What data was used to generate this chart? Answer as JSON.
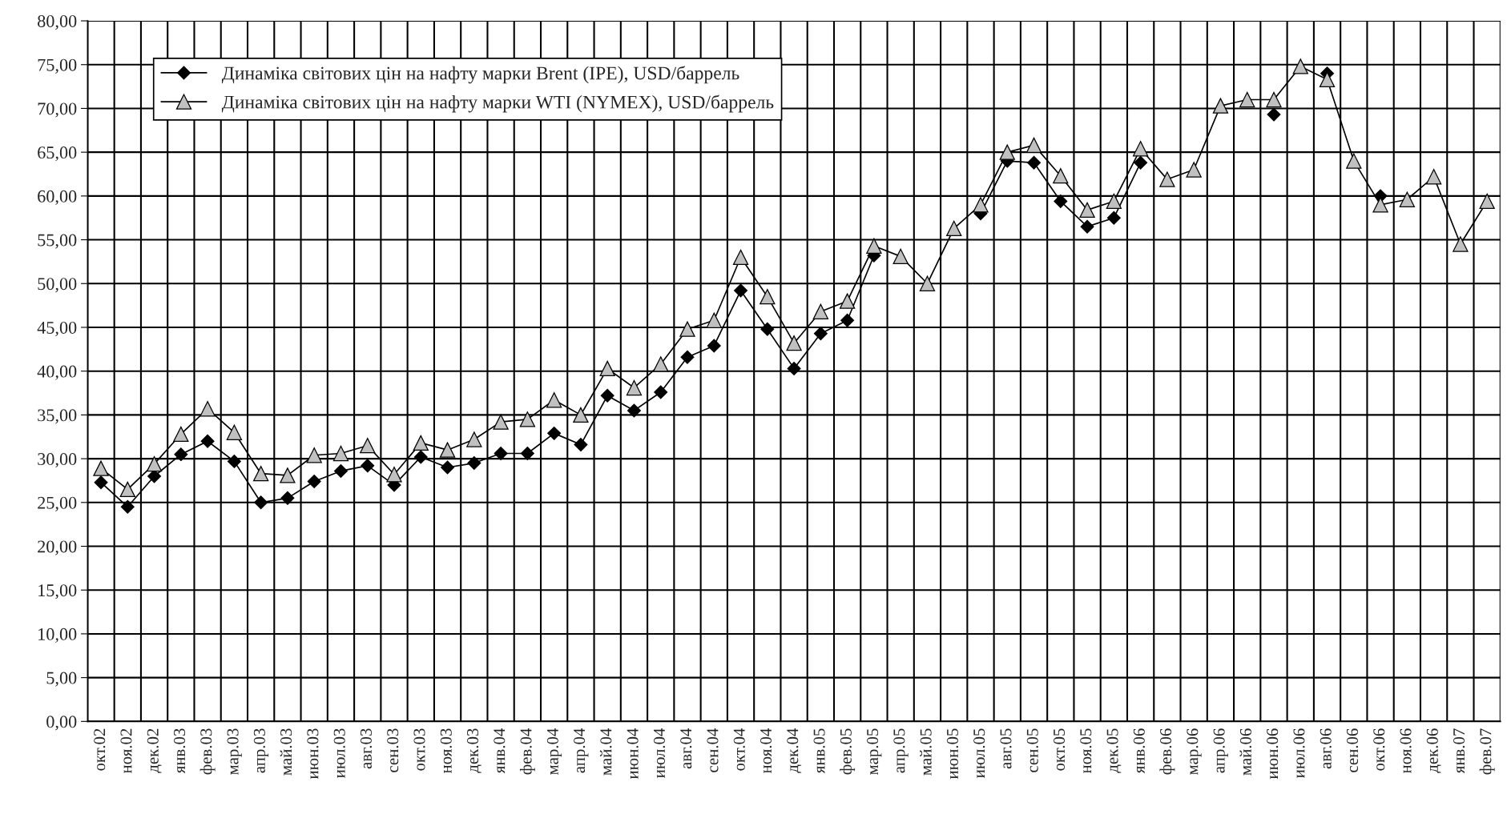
{
  "chart_data": {
    "type": "line",
    "categories": [
      "окт.02",
      "ноя.02",
      "дек.02",
      "янв.03",
      "фев.03",
      "мар.03",
      "апр.03",
      "май.03",
      "июн.03",
      "июл.03",
      "авг.03",
      "сен.03",
      "окт.03",
      "ноя.03",
      "дек.03",
      "янв.04",
      "фев.04",
      "мар.04",
      "апр.04",
      "май.04",
      "июн.04",
      "июл.04",
      "авг.04",
      "сен.04",
      "окт.04",
      "ноя.04",
      "дек.04",
      "янв.05",
      "фев.05",
      "мар.05",
      "апр.05",
      "май.05",
      "июн.05",
      "июл.05",
      "авг.05",
      "сен.05",
      "окт.05",
      "ноя.05",
      "дек.05",
      "янв.06",
      "фев.06",
      "мар.06",
      "апр.06",
      "май.06",
      "июн.06",
      "июл.06",
      "авг.06",
      "сен.06",
      "окт.06",
      "ноя.06",
      "дек.06",
      "янв.07",
      "фев.07"
    ],
    "series": [
      {
        "name": "Динаміка світових цін на нафту марки Brent (IPE), USD/баррель",
        "color": "#000000",
        "marker": "diamond",
        "values": [
          27.3,
          24.5,
          28.0,
          30.5,
          32.0,
          29.7,
          25.0,
          25.5,
          27.4,
          28.6,
          29.2,
          27.0,
          30.2,
          29.0,
          29.5,
          30.6,
          30.6,
          32.9,
          31.6,
          37.2,
          35.5,
          37.6,
          41.6,
          42.9,
          49.2,
          44.8,
          40.3,
          44.3,
          45.8,
          53.2,
          null,
          null,
          null,
          58.0,
          64.0,
          63.8,
          59.4,
          56.5,
          57.5,
          63.8,
          null,
          null,
          null,
          null,
          69.3,
          null,
          74.0,
          null,
          60.0,
          null,
          null,
          null,
          null
        ]
      },
      {
        "name": "Динаміка світових цін на нафту марки WTI (NYMEX), USD/баррель",
        "color": "#c0c0c0",
        "marker": "triangle",
        "values": [
          28.9,
          26.5,
          29.4,
          32.8,
          35.7,
          33.0,
          28.3,
          28.1,
          30.4,
          30.6,
          31.5,
          28.2,
          31.8,
          31.0,
          32.2,
          34.2,
          34.5,
          36.7,
          35.0,
          40.3,
          38.1,
          40.8,
          44.8,
          45.8,
          53.0,
          48.5,
          43.2,
          46.8,
          48.0,
          54.3,
          53.1,
          50.0,
          56.3,
          59.0,
          65.0,
          65.8,
          62.3,
          58.4,
          59.4,
          65.4,
          61.9,
          63.0,
          70.3,
          71.0,
          71.0,
          74.8,
          73.3,
          64.0,
          59.0,
          59.6,
          62.2,
          54.5,
          59.4
        ]
      }
    ],
    "ylim": [
      0,
      80
    ],
    "yticks": [
      {
        "value": 0,
        "label": "0,00"
      },
      {
        "value": 5,
        "label": "5,00"
      },
      {
        "value": 10,
        "label": "10,00"
      },
      {
        "value": 15,
        "label": "15,00"
      },
      {
        "value": 20,
        "label": "20,00"
      },
      {
        "value": 25,
        "label": "25,00"
      },
      {
        "value": 30,
        "label": "30,00"
      },
      {
        "value": 35,
        "label": "35,00"
      },
      {
        "value": 40,
        "label": "40,00"
      },
      {
        "value": 45,
        "label": "45,00"
      },
      {
        "value": 50,
        "label": "50,00"
      },
      {
        "value": 55,
        "label": "55,00"
      },
      {
        "value": 60,
        "label": "60,00"
      },
      {
        "value": 65,
        "label": "65,00"
      },
      {
        "value": 70,
        "label": "70,00"
      },
      {
        "value": 75,
        "label": "75,00"
      },
      {
        "value": 80,
        "label": "80,00"
      }
    ],
    "grid": true,
    "legend": "top left",
    "line_style": "solid"
  }
}
